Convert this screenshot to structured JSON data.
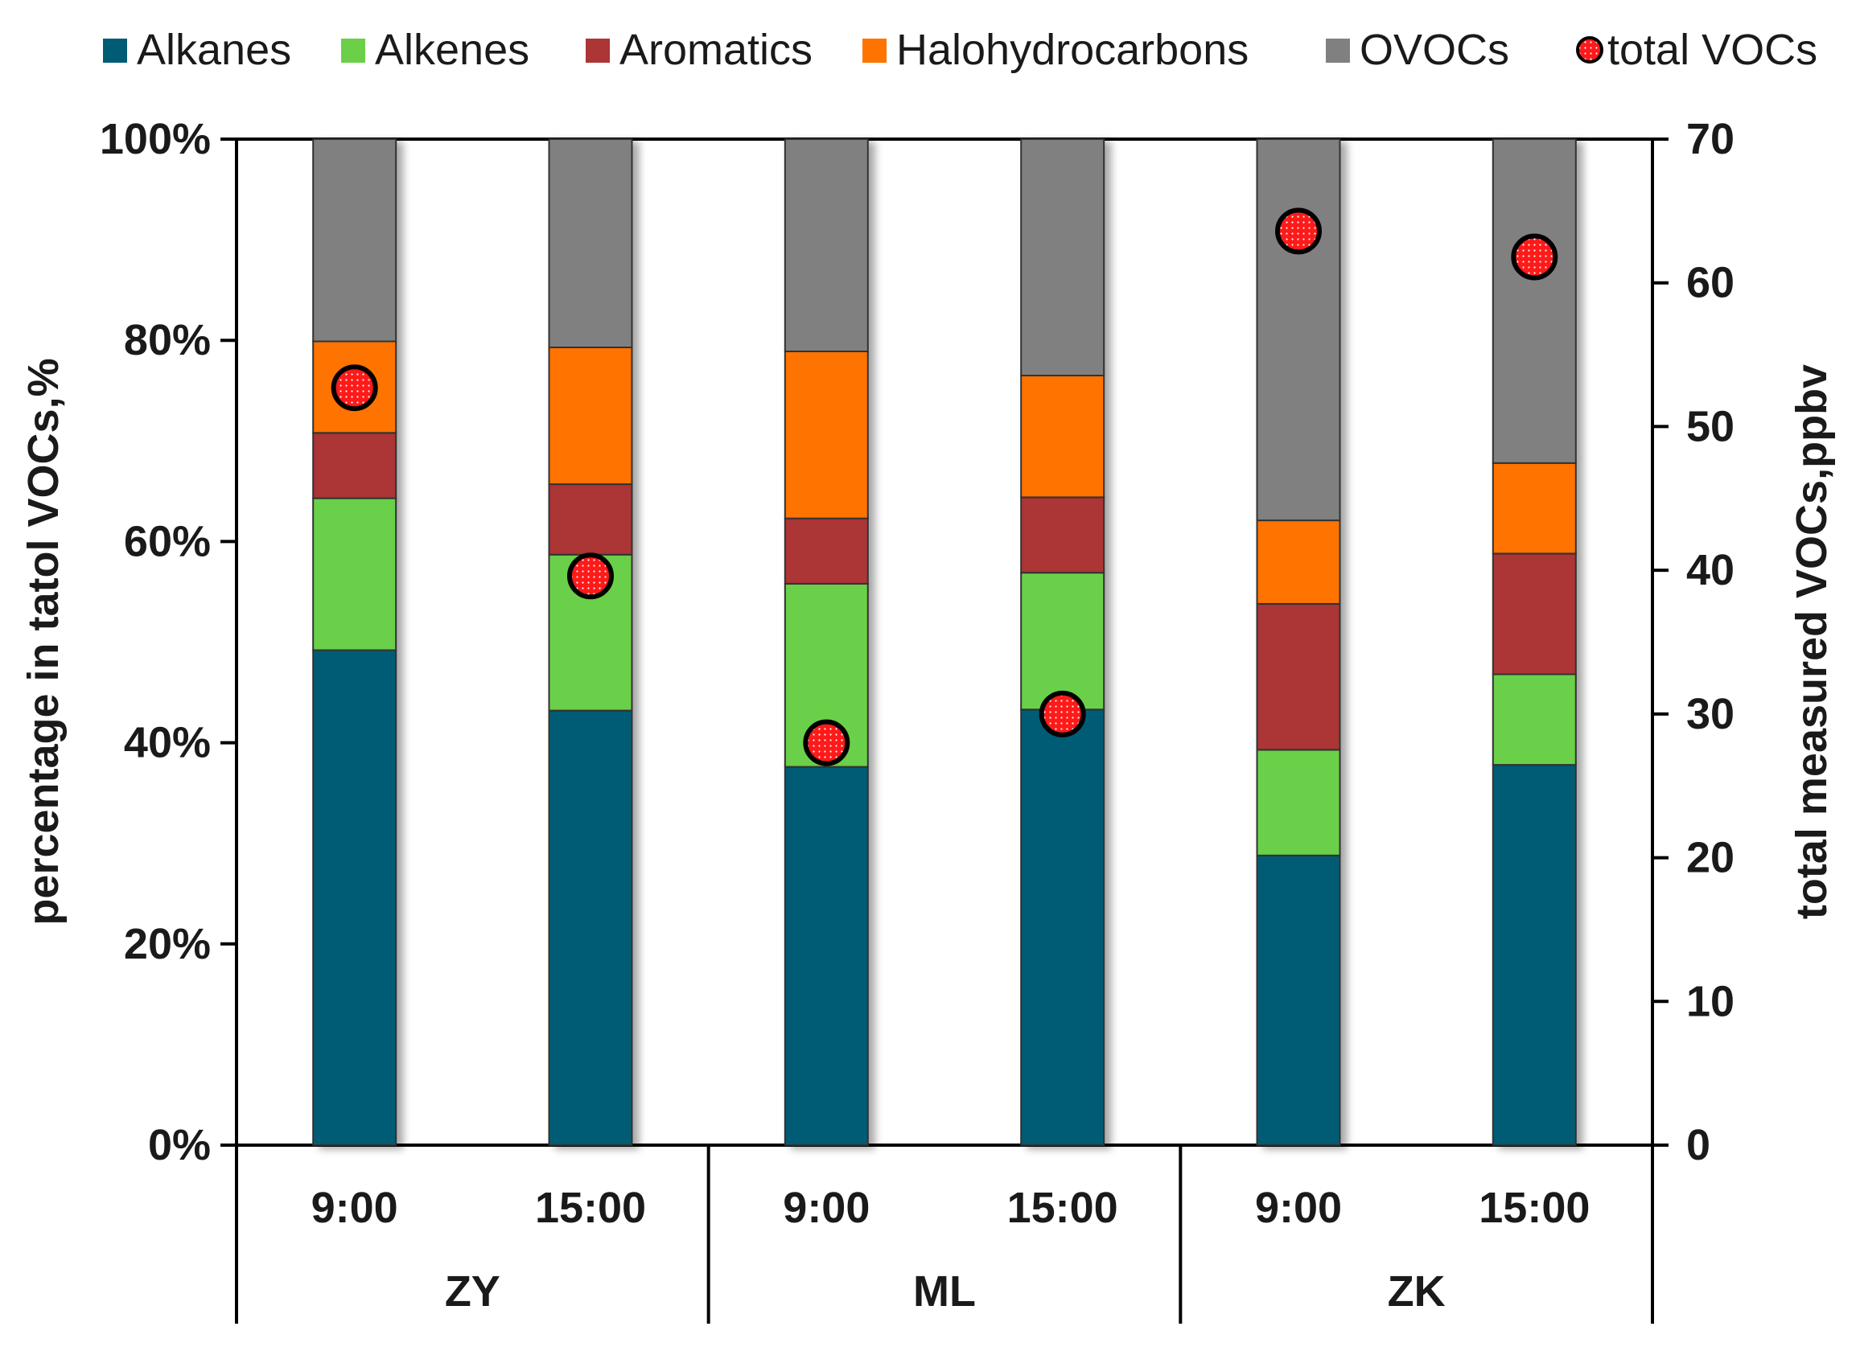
{
  "chart_data": {
    "type": "bar",
    "stacked": true,
    "normalized": true,
    "categories": [
      "9:00",
      "15:00",
      "9:00",
      "15:00",
      "9:00",
      "15:00"
    ],
    "groups": [
      "ZY",
      "ML",
      "ZK"
    ],
    "series": [
      {
        "name": "Alkanes",
        "color": "#005B74",
        "values": [
          49.2,
          43.2,
          37.6,
          43.3,
          28.8,
          37.8
        ]
      },
      {
        "name": "Alkenes",
        "color": "#6BD048",
        "values": [
          15.1,
          15.5,
          18.2,
          13.6,
          10.5,
          9.0
        ]
      },
      {
        "name": "Aromatics",
        "color": "#AC3535",
        "values": [
          6.5,
          7.0,
          6.5,
          7.5,
          14.5,
          12.0
        ]
      },
      {
        "name": "Halohydrocarbons",
        "color": "#FF7300",
        "values": [
          9.1,
          13.6,
          16.6,
          12.1,
          8.3,
          9.0
        ]
      },
      {
        "name": "OVOCs",
        "color": "#808080",
        "values": [
          20.1,
          20.7,
          21.1,
          23.5,
          37.9,
          32.2
        ]
      }
    ],
    "secondary_series": {
      "name": "total VOCs",
      "color": "#FF1A1A",
      "values": [
        52.7,
        39.6,
        28.0,
        30.0,
        63.6,
        61.8
      ]
    },
    "ylabel": "percentage in tatol VOCs,%",
    "y2label": "total measured VOCs,ppbv",
    "ylim": [
      0,
      100
    ],
    "y2lim": [
      0,
      70
    ],
    "yticks": [
      "0%",
      "20%",
      "40%",
      "60%",
      "80%",
      "100%"
    ],
    "y2ticks": [
      "0",
      "10",
      "20",
      "30",
      "40",
      "50",
      "60",
      "70"
    ],
    "legend": [
      "Alkanes",
      "Alkenes",
      "Aromatics",
      "Halohydrocarbons",
      "OVOCs",
      "total VOCs"
    ],
    "legend_position": "top"
  }
}
